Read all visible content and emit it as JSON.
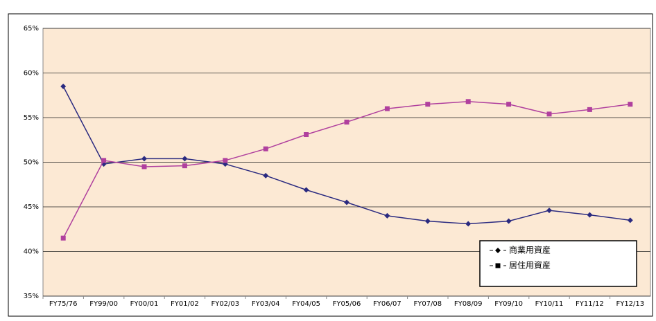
{
  "chart_data": {
    "type": "line",
    "categories": [
      "FY75/76",
      "FY99/00",
      "FY00/01",
      "FY01/02",
      "FY02/03",
      "FY03/04",
      "FY04/05",
      "FY05/06",
      "FY06/07",
      "FY07/08",
      "FY08/09",
      "FY09/10",
      "FY10/11",
      "FY11/12",
      "FY12/13"
    ],
    "series": [
      {
        "name": "商業用資産",
        "color": "#2a2a80",
        "marker": "diamond",
        "values": [
          58.5,
          49.8,
          50.4,
          50.4,
          49.8,
          48.5,
          46.9,
          45.5,
          44.0,
          43.4,
          43.1,
          43.4,
          44.6,
          44.1,
          43.5
        ]
      },
      {
        "name": "居住用資産",
        "color": "#b0409e",
        "marker": "square",
        "values": [
          41.5,
          50.2,
          49.5,
          49.6,
          50.2,
          51.5,
          53.1,
          54.5,
          56.0,
          56.5,
          56.8,
          56.5,
          55.4,
          55.9,
          56.5
        ]
      }
    ],
    "ylim": [
      35,
      65
    ],
    "yticks": [
      {
        "value": 35,
        "label": "35%"
      },
      {
        "value": 40,
        "label": "40%"
      },
      {
        "value": 45,
        "label": "45%"
      },
      {
        "value": 50,
        "label": "50%"
      },
      {
        "value": 55,
        "label": "55%"
      },
      {
        "value": 60,
        "label": "60%"
      },
      {
        "value": 65,
        "label": "65%"
      }
    ],
    "grid": true,
    "legend": "lower-right"
  }
}
